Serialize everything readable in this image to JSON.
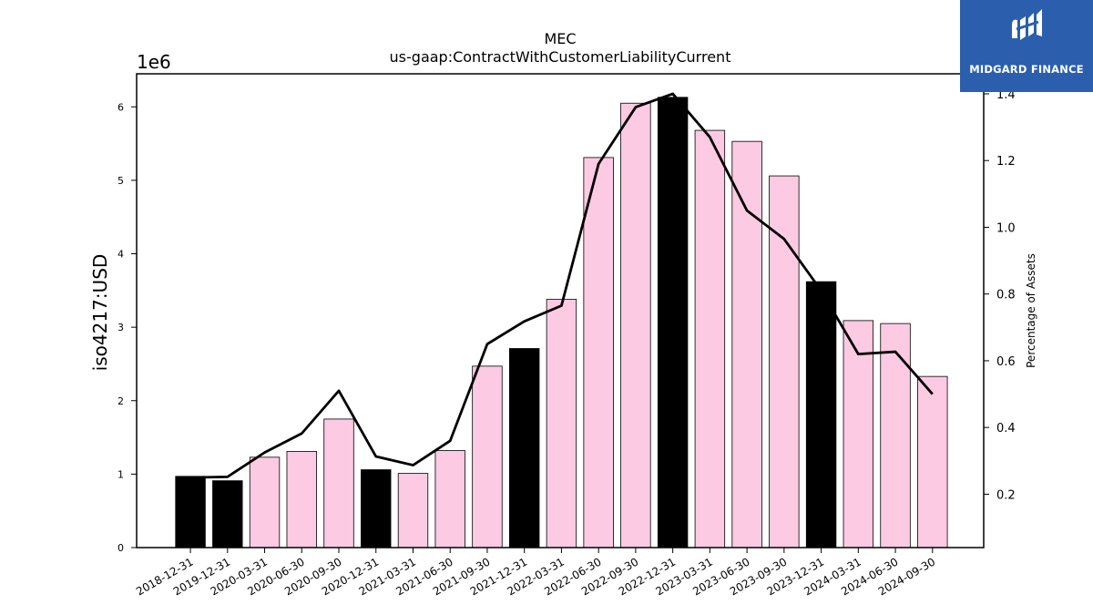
{
  "logo": {
    "text": "MIDGARD FINANCE"
  },
  "chart_data": {
    "type": "bar",
    "title": "MEC",
    "subtitle": "us-gaap:ContractWithCustomerLiabilityCurrent",
    "ylabel": "iso4217:USD",
    "y2label": "Percentage of Assets",
    "y_offset_label": "1e6",
    "categories": [
      "2018-12-31",
      "2019-12-31",
      "2020-03-31",
      "2020-06-30",
      "2020-09-30",
      "2020-12-31",
      "2021-03-31",
      "2021-06-30",
      "2021-09-30",
      "2021-12-31",
      "2022-03-31",
      "2022-06-30",
      "2022-09-30",
      "2022-12-31",
      "2023-03-31",
      "2023-06-30",
      "2023-09-30",
      "2023-12-31",
      "2024-03-31",
      "2024-06-30",
      "2024-09-30"
    ],
    "values": [
      0.97,
      0.91,
      1.23,
      1.31,
      1.75,
      1.06,
      1.01,
      1.32,
      2.47,
      2.71,
      3.38,
      5.31,
      6.05,
      6.13,
      5.68,
      5.53,
      5.06,
      3.62,
      3.09,
      3.05,
      2.33
    ],
    "year_end": [
      true,
      true,
      false,
      false,
      false,
      true,
      false,
      false,
      false,
      true,
      false,
      false,
      false,
      true,
      false,
      false,
      false,
      true,
      false,
      false,
      false
    ],
    "line_values": [
      0.25,
      0.252,
      0.325,
      0.382,
      0.51,
      0.313,
      0.287,
      0.36,
      0.65,
      0.718,
      0.765,
      1.19,
      1.36,
      1.4,
      1.27,
      1.05,
      0.965,
      0.81,
      0.62,
      0.627,
      0.5
    ],
    "ylim": [
      0,
      6.45
    ],
    "y2lim": [
      0.04,
      1.46
    ],
    "yticks": [
      0,
      1,
      2,
      3,
      4,
      5,
      6
    ],
    "y2ticks": [
      0.2,
      0.4,
      0.6,
      0.8,
      1.0,
      1.2,
      1.4
    ],
    "colors": {
      "year_end": "#000000",
      "quarter": "#fccae2",
      "line": "#000000",
      "logo_bg": "#2b5fad"
    }
  }
}
